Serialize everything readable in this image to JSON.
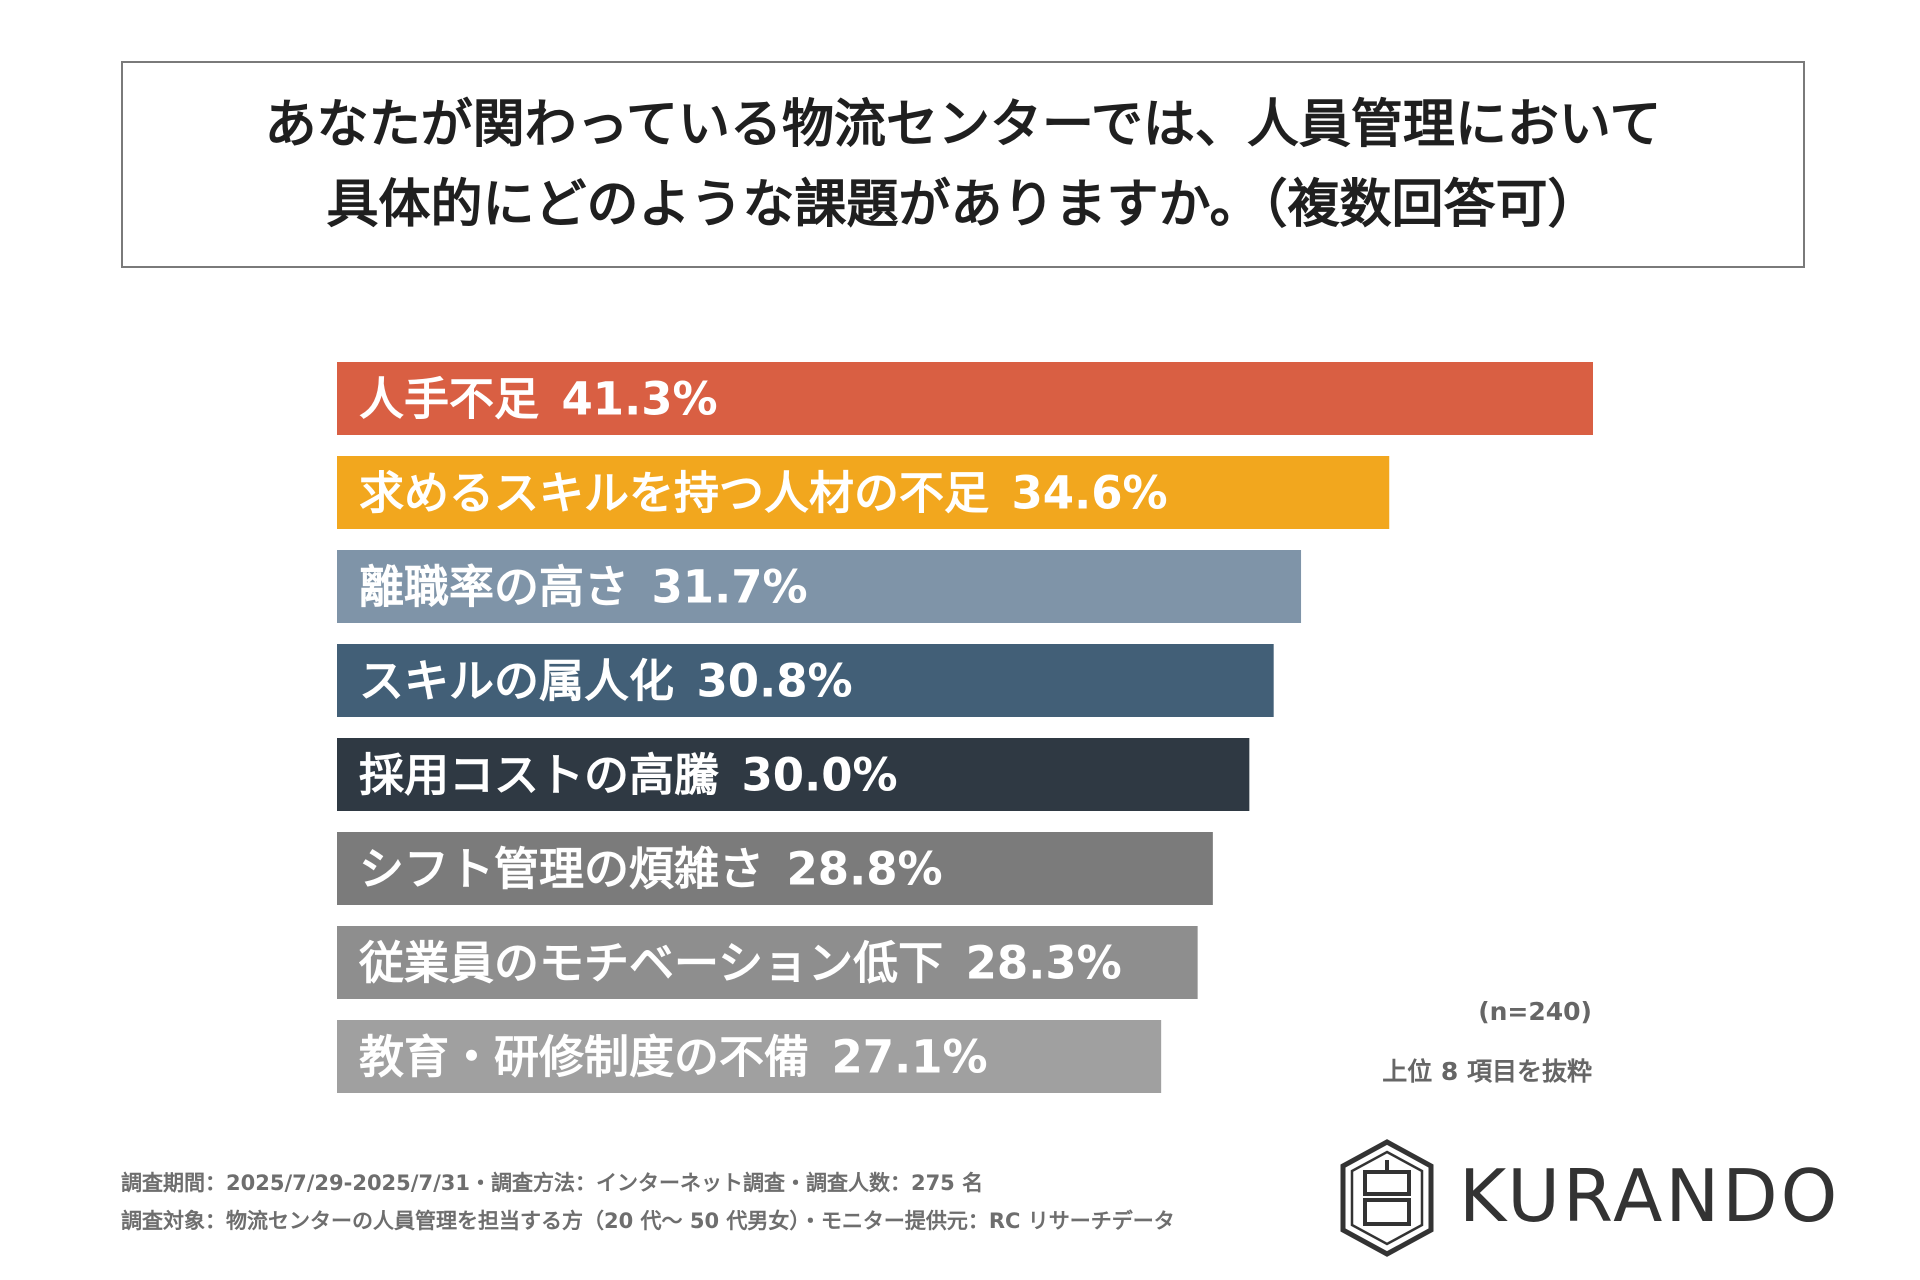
{
  "title": {
    "line1": "あなたが関わっている物流センターでは、人員管理において",
    "line2": "具体的にどのような課題がありますか。（複数回答可）"
  },
  "chart_data": {
    "type": "bar",
    "orientation": "horizontal",
    "categories": [
      "人手不足",
      "求めるスキルを持つ人材の不足",
      "離職率の高さ",
      "スキルの属人化",
      "採用コストの高騰",
      "シフト管理の煩雑さ",
      "従業員のモチベーション低下",
      "教育・研修制度の不備"
    ],
    "values": [
      41.3,
      34.6,
      31.7,
      30.8,
      30.0,
      28.8,
      28.3,
      27.1
    ],
    "value_labels": [
      "41.3%",
      "34.6%",
      "31.7%",
      "30.8%",
      "30.0%",
      "28.8%",
      "28.3%",
      "27.1%"
    ],
    "colors": [
      "#d95f43",
      "#f2a71e",
      "#7f94a8",
      "#425f77",
      "#2f3943",
      "#7b7b7b",
      "#8e8e8e",
      "#a0a0a0"
    ],
    "xlim": [
      0,
      41.3
    ],
    "grid": false,
    "legend": false
  },
  "notes": {
    "sample": "(n=240)",
    "subset": "上位 8 項目を抜粋"
  },
  "footer": {
    "line1": "調査期間：2025/7/29-2025/7/31・調査方法：インターネット調査・調査人数：275 名",
    "line2": "調査対象：物流センターの人員管理を担当する方（20 代〜 50 代男女）・モニター提供元：RC リサーチデータ"
  },
  "logo": {
    "text": "KURANDO",
    "icon": "kurando-hexagon-logo-icon"
  }
}
